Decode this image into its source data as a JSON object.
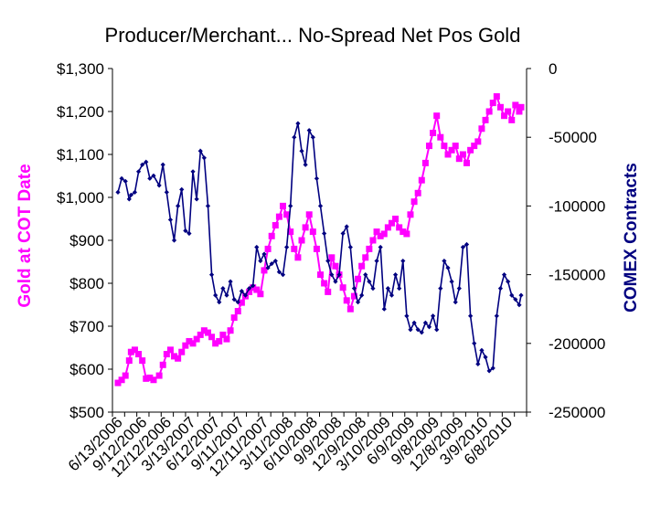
{
  "chart_data": {
    "type": "line",
    "title": "Producer/Merchant... No-Spread Net Pos Gold",
    "ylabel_left": "Gold at COT Date",
    "ylabel_right": "COMEX Contracts",
    "grid": false,
    "legend": "none",
    "x_tick_labels": [
      "6/13/2006",
      "9/12/2006",
      "12/12/2006",
      "3/13/2007",
      "6/12/2007",
      "9/11/2007",
      "12/11/2007",
      "3/11/2008",
      "6/10/2008",
      "9/9/2008",
      "12/9/2008",
      "3/10/2009",
      "6/9/2009",
      "9/8/2009",
      "12/8/2009",
      "3/9/2010",
      "6/8/2010"
    ],
    "y_left_ticks": [
      "$500",
      "$600",
      "$700",
      "$800",
      "$900",
      "$1,000",
      "$1,100",
      "$1,200",
      "$1,300"
    ],
    "y_left_range": [
      500,
      1300
    ],
    "y_right_ticks": [
      "0",
      "-50000",
      "-100000",
      "-150000",
      "-200000",
      "-250000"
    ],
    "y_right_range": [
      -250000,
      0
    ],
    "colors": {
      "gold_series": "#ff00ff",
      "contracts_series": "#000080"
    },
    "series": [
      {
        "axis": "left",
        "marker": "square",
        "x": [
          0,
          2,
          4,
          6,
          7,
          9,
          11,
          13,
          15,
          17,
          19,
          22,
          24,
          26,
          28,
          30,
          32,
          34,
          36,
          38,
          40,
          42,
          44,
          46,
          48,
          50,
          52,
          54,
          56,
          58,
          60,
          62,
          64,
          66,
          68,
          70,
          72,
          74,
          76,
          78,
          80,
          82,
          84,
          86,
          88,
          90,
          92,
          94,
          96,
          98,
          100,
          102,
          104,
          106,
          108,
          110,
          112,
          114,
          116,
          118,
          120,
          122,
          124,
          126,
          128,
          130,
          132,
          134,
          136,
          138,
          140,
          142,
          144,
          146,
          148,
          150,
          152,
          154,
          156,
          158,
          160,
          162,
          164,
          166,
          168,
          170,
          172,
          174,
          176,
          178,
          180,
          182,
          184,
          186,
          188,
          190,
          192,
          194,
          196,
          198,
          200,
          202,
          204,
          206,
          208,
          210,
          212,
          214,
          215
        ],
        "values": [
          568,
          575,
          585,
          620,
          640,
          645,
          635,
          620,
          578,
          580,
          575,
          585,
          610,
          635,
          645,
          630,
          625,
          640,
          655,
          665,
          660,
          670,
          680,
          690,
          685,
          675,
          660,
          665,
          680,
          670,
          690,
          720,
          735,
          755,
          770,
          780,
          790,
          785,
          775,
          830,
          880,
          910,
          935,
          955,
          980,
          960,
          920,
          880,
          860,
          900,
          930,
          960,
          920,
          880,
          820,
          800,
          780,
          860,
          840,
          820,
          790,
          760,
          740,
          770,
          810,
          840,
          860,
          880,
          900,
          920,
          910,
          915,
          930,
          940,
          950,
          930,
          920,
          915,
          960,
          990,
          1010,
          1040,
          1080,
          1120,
          1150,
          1190,
          1140,
          1120,
          1100,
          1110,
          1120,
          1090,
          1100,
          1080,
          1110,
          1120,
          1130,
          1160,
          1180,
          1200,
          1220,
          1235,
          1210,
          1190,
          1200,
          1180,
          1215,
          1200,
          1210
        ]
      },
      {
        "axis": "right",
        "marker": "diamond",
        "x": [
          0,
          2,
          4,
          6,
          7,
          9,
          11,
          13,
          15,
          17,
          19,
          22,
          24,
          26,
          28,
          30,
          32,
          34,
          36,
          38,
          40,
          42,
          44,
          46,
          48,
          50,
          52,
          54,
          56,
          58,
          60,
          62,
          64,
          66,
          68,
          70,
          72,
          74,
          76,
          78,
          80,
          82,
          84,
          86,
          88,
          90,
          92,
          94,
          96,
          98,
          100,
          102,
          104,
          106,
          108,
          110,
          112,
          114,
          116,
          118,
          120,
          122,
          124,
          126,
          128,
          130,
          132,
          134,
          136,
          138,
          140,
          142,
          144,
          146,
          148,
          150,
          152,
          154,
          156,
          158,
          160,
          162,
          164,
          166,
          168,
          170,
          172,
          174,
          176,
          178,
          180,
          182,
          184,
          186,
          188,
          190,
          192,
          194,
          196,
          198,
          200,
          202,
          204,
          206,
          208,
          210,
          212,
          214,
          215
        ],
        "values": [
          -90000,
          -80000,
          -82000,
          -95000,
          -92000,
          -90000,
          -75000,
          -70000,
          -68000,
          -80000,
          -78000,
          -85000,
          -70000,
          -90000,
          -110000,
          -125000,
          -100000,
          -88000,
          -118000,
          -120000,
          -75000,
          -95000,
          -60000,
          -65000,
          -100000,
          -150000,
          -165000,
          -170000,
          -160000,
          -165000,
          -155000,
          -168000,
          -170000,
          -162000,
          -165000,
          -160000,
          -158000,
          -130000,
          -140000,
          -135000,
          -145000,
          -142000,
          -140000,
          -148000,
          -150000,
          -130000,
          -100000,
          -50000,
          -40000,
          -60000,
          -70000,
          -45000,
          -50000,
          -80000,
          -100000,
          -120000,
          -140000,
          -150000,
          -155000,
          -150000,
          -120000,
          -115000,
          -130000,
          -160000,
          -170000,
          -165000,
          -150000,
          -155000,
          -160000,
          -140000,
          -130000,
          -175000,
          -160000,
          -165000,
          -150000,
          -160000,
          -140000,
          -180000,
          -190000,
          -185000,
          -190000,
          -192000,
          -185000,
          -188000,
          -180000,
          -190000,
          -160000,
          -140000,
          -145000,
          -155000,
          -170000,
          -160000,
          -130000,
          -128000,
          -180000,
          -200000,
          -215000,
          -205000,
          -210000,
          -220000,
          -218000,
          -180000,
          -160000,
          -150000,
          -155000,
          -165000,
          -168000,
          -172000,
          -165000
        ]
      }
    ]
  }
}
